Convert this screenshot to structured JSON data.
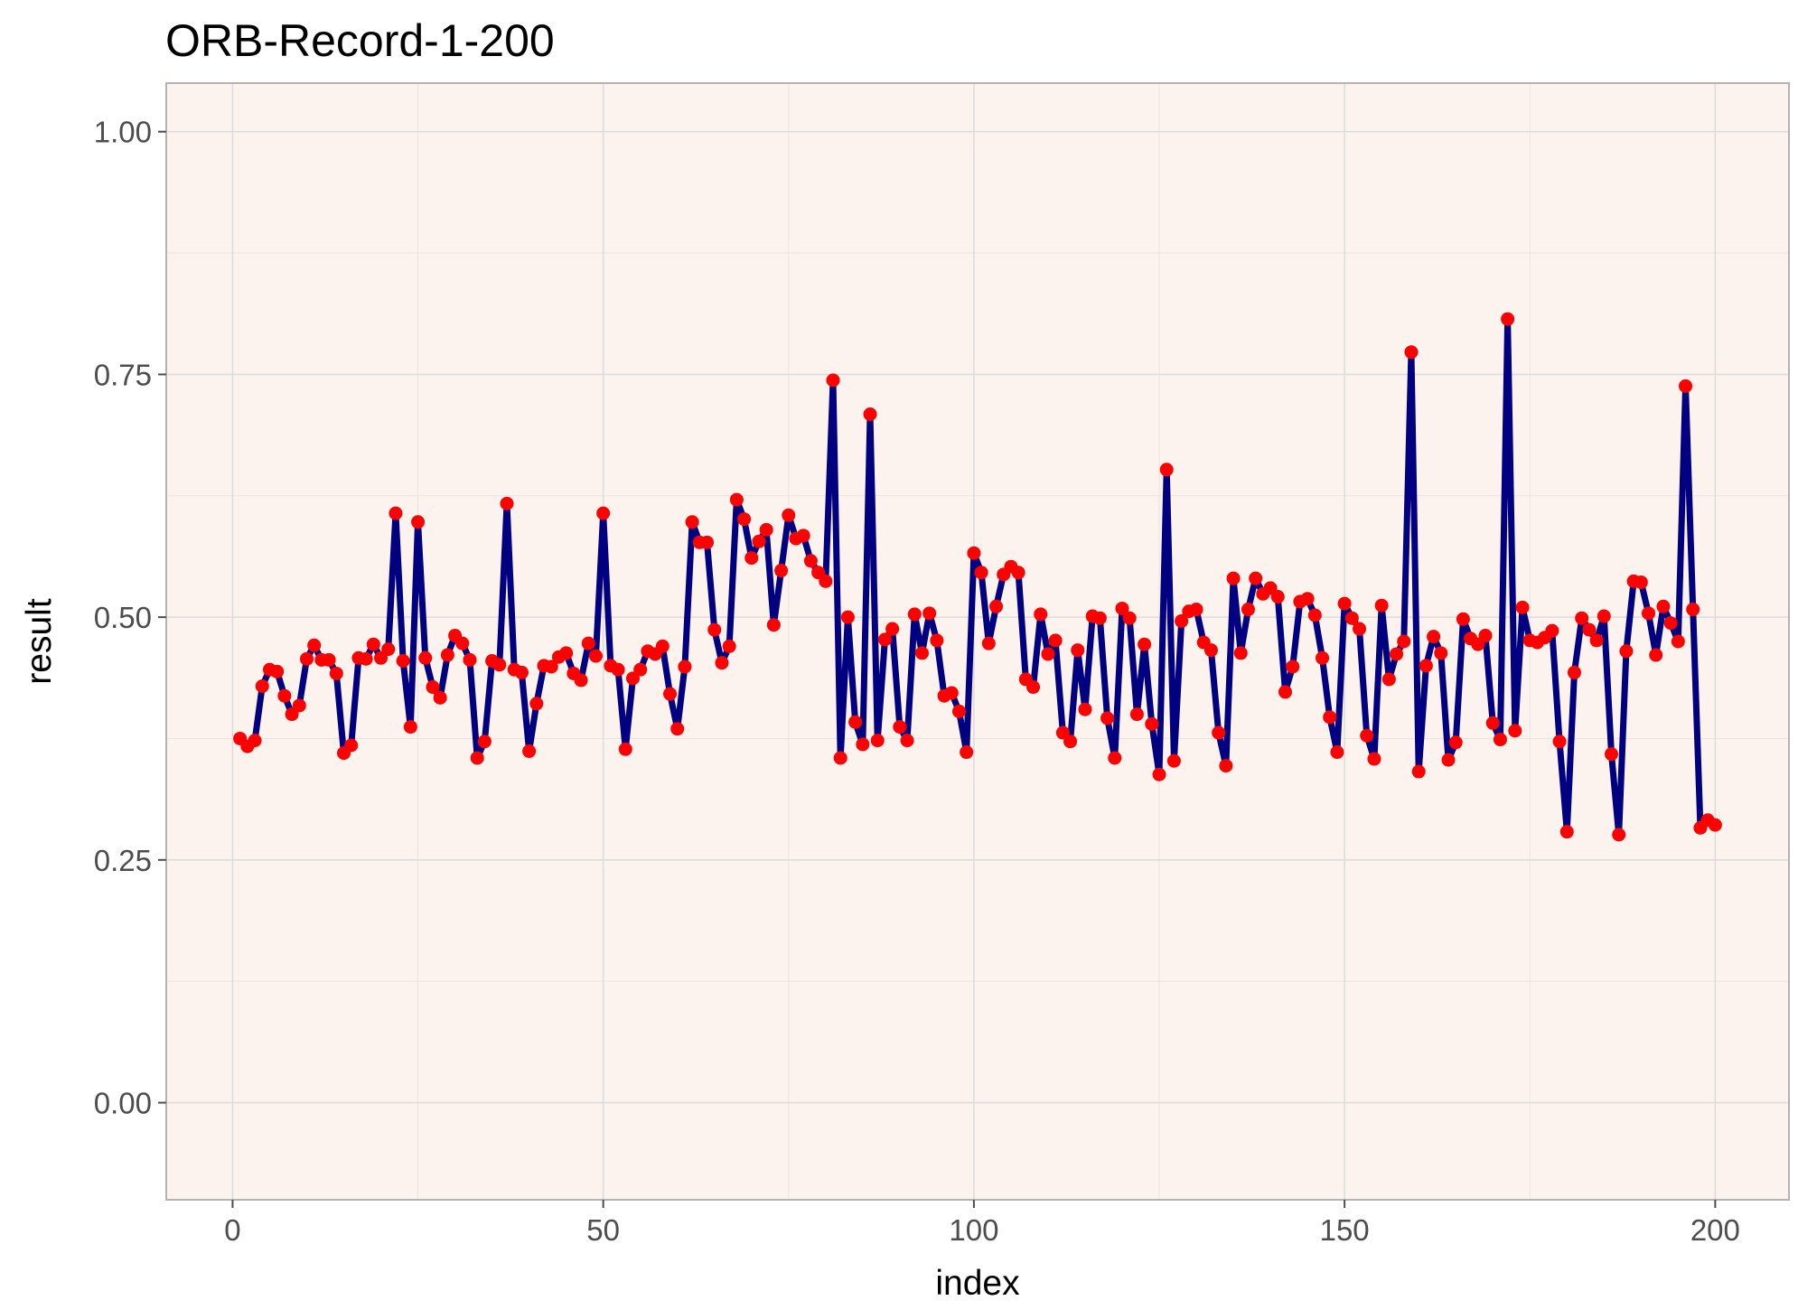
{
  "chart_data": {
    "type": "line",
    "title": "ORB-Record-1-200",
    "xlabel": "index",
    "ylabel": "result",
    "xlim": [
      -8.95,
      209.95
    ],
    "ylim": [
      -0.1,
      1.05
    ],
    "x_ticks": [
      0,
      50,
      100,
      150,
      200
    ],
    "x_tick_labels": [
      "0",
      "50",
      "100",
      "150",
      "200"
    ],
    "y_ticks": [
      0,
      0.25,
      0.5,
      0.75,
      1.0
    ],
    "y_tick_labels": [
      "0.00",
      "0.25",
      "0.50",
      "0.75",
      "1.00"
    ],
    "grid": true,
    "legend": "none",
    "colors": {
      "panel_background": "#fdf3ee",
      "panel_border": "#b3b3b3",
      "grid_major": "#dcdcdc",
      "grid_minor": "#eae3df",
      "line": "#000080",
      "points": "#ff0000"
    },
    "series": [
      {
        "x": [
          1,
          2,
          3,
          4,
          5,
          6,
          7,
          8,
          9,
          10,
          11,
          12,
          13,
          14,
          15,
          16,
          17,
          18,
          19,
          20,
          21,
          22,
          23,
          24,
          25,
          26,
          27,
          28,
          29,
          30,
          31,
          32,
          33,
          34,
          35,
          36,
          37,
          38,
          39,
          40,
          41,
          42,
          43,
          44,
          45,
          46,
          47,
          48,
          49,
          50,
          51,
          52,
          53,
          54,
          55,
          56,
          57,
          58,
          59,
          60,
          61,
          62,
          63,
          64,
          65,
          66,
          67,
          68,
          69,
          70,
          71,
          72,
          73,
          74,
          75,
          76,
          77,
          78,
          79,
          80,
          81,
          82,
          83,
          84,
          85,
          86,
          87,
          88,
          89,
          90,
          91,
          92,
          93,
          94,
          95,
          96,
          97,
          98,
          99,
          100,
          101,
          102,
          103,
          104,
          105,
          106,
          107,
          108,
          109,
          110,
          111,
          112,
          113,
          114,
          115,
          116,
          117,
          118,
          119,
          120,
          121,
          122,
          123,
          124,
          125,
          126,
          127,
          128,
          129,
          130,
          131,
          132,
          133,
          134,
          135,
          136,
          137,
          138,
          139,
          140,
          141,
          142,
          143,
          144,
          145,
          146,
          147,
          148,
          149,
          150,
          151,
          152,
          153,
          154,
          155,
          156,
          157,
          158,
          159,
          160,
          161,
          162,
          163,
          164,
          165,
          166,
          167,
          168,
          169,
          170,
          171,
          172,
          173,
          174,
          175,
          176,
          177,
          178,
          179,
          180,
          181,
          182,
          183,
          184,
          185,
          186,
          187,
          188,
          189,
          190,
          191,
          192,
          193,
          194,
          195,
          196,
          197,
          198,
          199,
          200
        ],
        "y": [
          0.375,
          0.367,
          0.373,
          0.429,
          0.446,
          0.444,
          0.419,
          0.4,
          0.409,
          0.457,
          0.471,
          0.456,
          0.456,
          0.442,
          0.36,
          0.368,
          0.458,
          0.457,
          0.472,
          0.458,
          0.467,
          0.607,
          0.455,
          0.387,
          0.598,
          0.458,
          0.428,
          0.417,
          0.461,
          0.481,
          0.473,
          0.456,
          0.355,
          0.372,
          0.455,
          0.451,
          0.617,
          0.446,
          0.443,
          0.362,
          0.411,
          0.45,
          0.449,
          0.459,
          0.463,
          0.442,
          0.435,
          0.473,
          0.46,
          0.607,
          0.45,
          0.446,
          0.364,
          0.437,
          0.446,
          0.465,
          0.462,
          0.47,
          0.421,
          0.385,
          0.449,
          0.598,
          0.577,
          0.577,
          0.487,
          0.453,
          0.47,
          0.621,
          0.601,
          0.561,
          0.578,
          0.59,
          0.492,
          0.548,
          0.605,
          0.581,
          0.584,
          0.558,
          0.546,
          0.537,
          0.744,
          0.355,
          0.5,
          0.392,
          0.369,
          0.709,
          0.373,
          0.477,
          0.488,
          0.387,
          0.373,
          0.503,
          0.463,
          0.504,
          0.476,
          0.419,
          0.422,
          0.403,
          0.361,
          0.566,
          0.546,
          0.473,
          0.511,
          0.544,
          0.552,
          0.546,
          0.436,
          0.428,
          0.503,
          0.462,
          0.476,
          0.381,
          0.372,
          0.466,
          0.405,
          0.501,
          0.499,
          0.396,
          0.355,
          0.509,
          0.499,
          0.4,
          0.472,
          0.39,
          0.338,
          0.652,
          0.352,
          0.496,
          0.506,
          0.508,
          0.474,
          0.466,
          0.381,
          0.347,
          0.54,
          0.463,
          0.508,
          0.54,
          0.524,
          0.53,
          0.521,
          0.423,
          0.449,
          0.516,
          0.519,
          0.502,
          0.458,
          0.397,
          0.361,
          0.514,
          0.499,
          0.488,
          0.378,
          0.354,
          0.512,
          0.436,
          0.462,
          0.475,
          0.773,
          0.341,
          0.45,
          0.48,
          0.463,
          0.353,
          0.371,
          0.498,
          0.478,
          0.472,
          0.481,
          0.391,
          0.374,
          0.807,
          0.383,
          0.51,
          0.476,
          0.474,
          0.479,
          0.486,
          0.372,
          0.279,
          0.443,
          0.499,
          0.487,
          0.476,
          0.501,
          0.359,
          0.276,
          0.465,
          0.537,
          0.536,
          0.504,
          0.461,
          0.511,
          0.494,
          0.475,
          0.738,
          0.508,
          0.283,
          0.291,
          0.286
        ]
      }
    ]
  }
}
